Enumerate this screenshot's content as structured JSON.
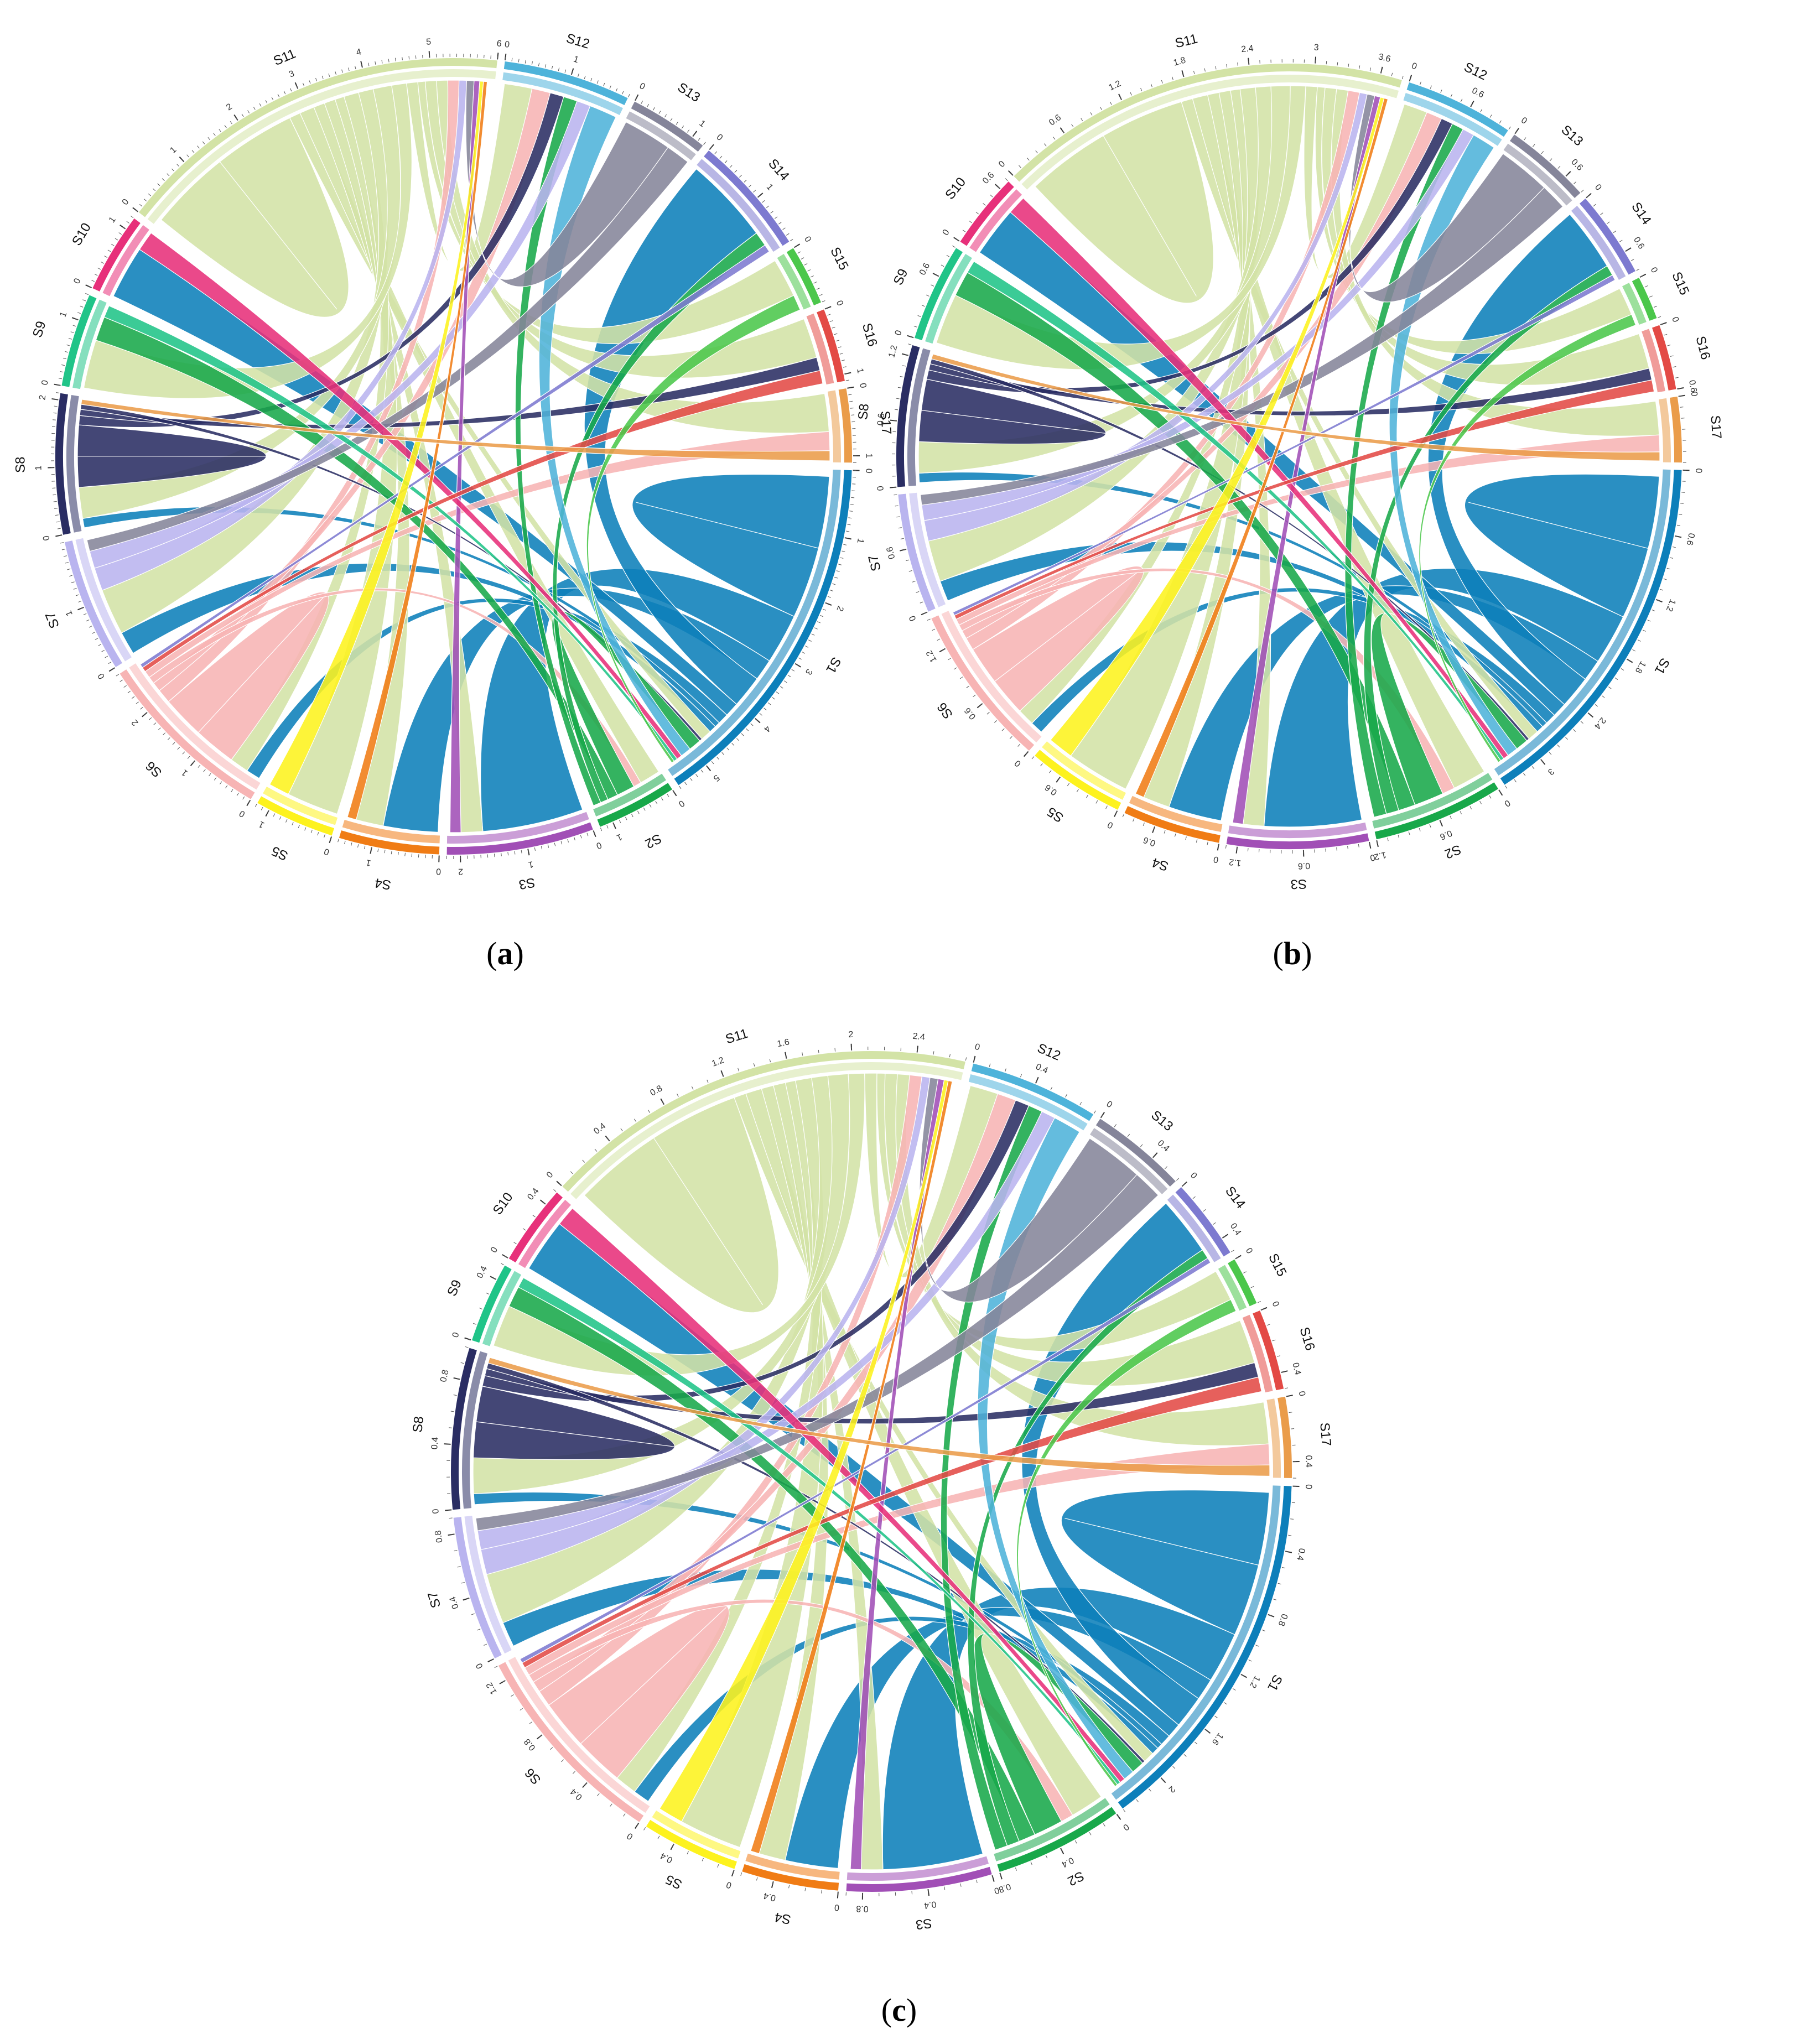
{
  "segment_colors": {
    "S1": "#0d7fba",
    "S2": "#18a84a",
    "S3": "#a14fb6",
    "S4": "#f07c15",
    "S5": "#fdf21e",
    "S6": "#f7b4b4",
    "S7": "#b9b4ef",
    "S8": "#2a2d63",
    "S9": "#20c488",
    "S10": "#e7307a",
    "S11": "#d3e3a6",
    "S12": "#4eb3da",
    "S13": "#85859a",
    "S14": "#7d7ad0",
    "S15": "#4bc74b",
    "S16": "#e34a45",
    "S17": "#ea9c4a"
  },
  "chart_data": [
    {
      "type": "chord",
      "panel_label": "a",
      "segments": [
        {
          "name": "S1",
          "total": 5.5,
          "ticks": [
            "0",
            "1",
            "2",
            "3",
            "4",
            "5"
          ]
        },
        {
          "name": "S2",
          "total": 1.2,
          "ticks": [
            "0",
            "1"
          ]
        },
        {
          "name": "S3",
          "total": 2.2,
          "ticks": [
            "0",
            "1",
            "2"
          ]
        },
        {
          "name": "S4",
          "total": 1.5,
          "ticks": [
            "0",
            "1"
          ]
        },
        {
          "name": "S5",
          "total": 1.2,
          "ticks": [
            "0",
            "1"
          ]
        },
        {
          "name": "S6",
          "total": 2.7,
          "ticks": [
            "0",
            "1",
            "2"
          ]
        },
        {
          "name": "S7",
          "total": 2.0,
          "ticks": [
            "0",
            "1"
          ]
        },
        {
          "name": "S8",
          "total": 2.1,
          "ticks": [
            "0",
            "1",
            "2"
          ]
        },
        {
          "name": "S9",
          "total": 1.4,
          "ticks": [
            "0",
            "1"
          ]
        },
        {
          "name": "S10",
          "total": 1.2,
          "ticks": [
            "0",
            "1"
          ]
        },
        {
          "name": "S11",
          "total": 6.0,
          "ticks": [
            "0",
            "1",
            "2",
            "3",
            "4",
            "5",
            "6"
          ]
        },
        {
          "name": "S12",
          "total": 1.9,
          "ticks": [
            "0",
            "1"
          ]
        },
        {
          "name": "S13",
          "total": 1.2,
          "ticks": [
            "0",
            "1"
          ]
        },
        {
          "name": "S14",
          "total": 1.8,
          "ticks": [
            "0",
            "1"
          ]
        },
        {
          "name": "S15",
          "total": 0.9,
          "ticks": [
            "0"
          ]
        },
        {
          "name": "S16",
          "total": 1.1,
          "ticks": [
            "0",
            "1"
          ]
        },
        {
          "name": "S17",
          "total": 1.1,
          "ticks": [
            "0",
            "1"
          ]
        }
      ]
    },
    {
      "type": "chord",
      "panel_label": "b",
      "segments": [
        {
          "name": "S1",
          "total": 3.4,
          "ticks": [
            "0",
            "0.6",
            "1.2",
            "1.8",
            "2.4",
            "3"
          ]
        },
        {
          "name": "S2",
          "total": 1.2,
          "ticks": [
            "0",
            "0.6",
            "1.2"
          ]
        },
        {
          "name": "S3",
          "total": 1.3,
          "ticks": [
            "0",
            "0.6",
            "1.2"
          ]
        },
        {
          "name": "S4",
          "total": 0.9,
          "ticks": [
            "0",
            "0.6"
          ]
        },
        {
          "name": "S5",
          "total": 0.9,
          "ticks": [
            "0",
            "0.6"
          ]
        },
        {
          "name": "S6",
          "total": 1.5,
          "ticks": [
            "0",
            "0.6",
            "1.2"
          ]
        },
        {
          "name": "S7",
          "total": 1.1,
          "ticks": [
            "0",
            "0.6"
          ]
        },
        {
          "name": "S8",
          "total": 1.3,
          "ticks": [
            "0",
            "0.6",
            "1.2"
          ]
        },
        {
          "name": "S9",
          "total": 0.9,
          "ticks": [
            "0",
            "0.6"
          ]
        },
        {
          "name": "S10",
          "total": 0.7,
          "ticks": [
            "0",
            "0.6"
          ]
        },
        {
          "name": "S11",
          "total": 3.8,
          "ticks": [
            "0",
            "0.6",
            "1.2",
            "1.8",
            "2.4",
            "3",
            "3.6"
          ]
        },
        {
          "name": "S12",
          "total": 1.0,
          "ticks": [
            "0",
            "0.6"
          ]
        },
        {
          "name": "S13",
          "total": 0.8,
          "ticks": [
            "0",
            "0.6"
          ]
        },
        {
          "name": "S14",
          "total": 0.8,
          "ticks": [
            "0",
            "0.6"
          ]
        },
        {
          "name": "S15",
          "total": 0.4,
          "ticks": [
            "0"
          ]
        },
        {
          "name": "S16",
          "total": 0.6,
          "ticks": [
            "0",
            "0.6"
          ]
        },
        {
          "name": "S17",
          "total": 0.6,
          "ticks": [
            "0"
          ]
        }
      ]
    },
    {
      "type": "chord",
      "panel_label": "c",
      "segments": [
        {
          "name": "S1",
          "total": 2.3,
          "ticks": [
            "0",
            "0.4",
            "0.8",
            "1.2",
            "1.6",
            "2"
          ]
        },
        {
          "name": "S2",
          "total": 0.8,
          "ticks": [
            "0",
            "0.4",
            "0.8"
          ]
        },
        {
          "name": "S3",
          "total": 0.9,
          "ticks": [
            "0",
            "0.4",
            "0.8"
          ]
        },
        {
          "name": "S4",
          "total": 0.6,
          "ticks": [
            "0",
            "0.4"
          ]
        },
        {
          "name": "S5",
          "total": 0.6,
          "ticks": [
            "0",
            "0.4"
          ]
        },
        {
          "name": "S6",
          "total": 1.3,
          "ticks": [
            "0",
            "0.4",
            "0.8",
            "1.2"
          ]
        },
        {
          "name": "S7",
          "total": 0.9,
          "ticks": [
            "0",
            "0.4",
            "0.8"
          ]
        },
        {
          "name": "S8",
          "total": 1.0,
          "ticks": [
            "0",
            "0.4",
            "0.8"
          ]
        },
        {
          "name": "S9",
          "total": 0.5,
          "ticks": [
            "0",
            "0.4"
          ]
        },
        {
          "name": "S10",
          "total": 0.5,
          "ticks": [
            "0",
            "0.4"
          ]
        },
        {
          "name": "S11",
          "total": 2.7,
          "ticks": [
            "0",
            "0.4",
            "0.8",
            "1.2",
            "1.6",
            "2",
            "2.4"
          ]
        },
        {
          "name": "S12",
          "total": 0.8,
          "ticks": [
            "0",
            "0.4"
          ]
        },
        {
          "name": "S13",
          "total": 0.6,
          "ticks": [
            "0",
            "0.4"
          ]
        },
        {
          "name": "S14",
          "total": 0.5,
          "ticks": [
            "0",
            "0.4"
          ]
        },
        {
          "name": "S15",
          "total": 0.3,
          "ticks": [
            "0"
          ]
        },
        {
          "name": "S16",
          "total": 0.5,
          "ticks": [
            "0",
            "0.4"
          ]
        },
        {
          "name": "S17",
          "total": 0.5,
          "ticks": [
            "0",
            "0.4"
          ]
        }
      ]
    }
  ],
  "flows": [
    {
      "from": "S11",
      "to": "S11",
      "value": 2.2
    },
    {
      "from": "S1",
      "to": "S1",
      "value": 2.0
    },
    {
      "from": "S1",
      "to": "S3",
      "value": 1.4
    },
    {
      "from": "S1",
      "to": "S4",
      "value": 0.6
    },
    {
      "from": "S1",
      "to": "S14",
      "value": 0.9
    },
    {
      "from": "S1",
      "to": "S10",
      "value": 0.4
    },
    {
      "from": "S1",
      "to": "S6",
      "value": 0.3
    },
    {
      "from": "S1",
      "to": "S8",
      "value": 0.15
    },
    {
      "from": "S1",
      "to": "S7",
      "value": 0.2
    },
    {
      "from": "S11",
      "to": "S1",
      "value": 0.3
    },
    {
      "from": "S11",
      "to": "S2",
      "value": 0.4
    },
    {
      "from": "S11",
      "to": "S3",
      "value": 0.3
    },
    {
      "from": "S11",
      "to": "S4",
      "value": 0.3
    },
    {
      "from": "S11",
      "to": "S5",
      "value": 0.25
    },
    {
      "from": "S11",
      "to": "S6",
      "value": 0.4
    },
    {
      "from": "S11",
      "to": "S7",
      "value": 0.4
    },
    {
      "from": "S11",
      "to": "S8",
      "value": 0.5
    },
    {
      "from": "S11",
      "to": "S9",
      "value": 0.4
    },
    {
      "from": "S11",
      "to": "S12",
      "value": 0.3
    },
    {
      "from": "S11",
      "to": "S15",
      "value": 0.2
    },
    {
      "from": "S11",
      "to": "S16",
      "value": 0.3
    },
    {
      "from": "S11",
      "to": "S17",
      "value": 0.3
    },
    {
      "from": "S6",
      "to": "S6",
      "value": 0.9
    },
    {
      "from": "S6",
      "to": "S11",
      "value": 0.3
    },
    {
      "from": "S6",
      "to": "S12",
      "value": 0.2
    },
    {
      "from": "S6",
      "to": "S2",
      "value": 0.15
    },
    {
      "from": "S6",
      "to": "S17",
      "value": 0.15
    },
    {
      "from": "S8",
      "to": "S8",
      "value": 0.5
    },
    {
      "from": "S8",
      "to": "S12",
      "value": 0.15
    },
    {
      "from": "S8",
      "to": "S16",
      "value": 0.1
    },
    {
      "from": "S8",
      "to": "S1",
      "value": 0.08
    },
    {
      "from": "S2",
      "to": "S1",
      "value": 0.35
    },
    {
      "from": "S2",
      "to": "S9",
      "value": 0.2
    },
    {
      "from": "S2",
      "to": "S14",
      "value": 0.15
    },
    {
      "from": "S2",
      "to": "S12",
      "value": 0.15
    },
    {
      "from": "S7",
      "to": "S11",
      "value": 0.2
    },
    {
      "from": "S7",
      "to": "S12",
      "value": 0.15
    },
    {
      "from": "S12",
      "to": "S1",
      "value": 0.3
    },
    {
      "from": "S13",
      "to": "S11",
      "value": 0.2
    },
    {
      "from": "S13",
      "to": "S7",
      "value": 0.1
    },
    {
      "from": "S3",
      "to": "S11",
      "value": 0.15
    },
    {
      "from": "S10",
      "to": "S1",
      "value": 0.15
    },
    {
      "from": "S9",
      "to": "S1",
      "value": 0.1
    },
    {
      "from": "S16",
      "to": "S6",
      "value": 0.1
    },
    {
      "from": "S14",
      "to": "S6",
      "value": 0.08
    },
    {
      "from": "S5",
      "to": "S11",
      "value": 0.1
    },
    {
      "from": "S4",
      "to": "S11",
      "value": 0.1
    },
    {
      "from": "S15",
      "to": "S1",
      "value": 0.08
    },
    {
      "from": "S17",
      "to": "S8",
      "value": 0.08
    }
  ]
}
